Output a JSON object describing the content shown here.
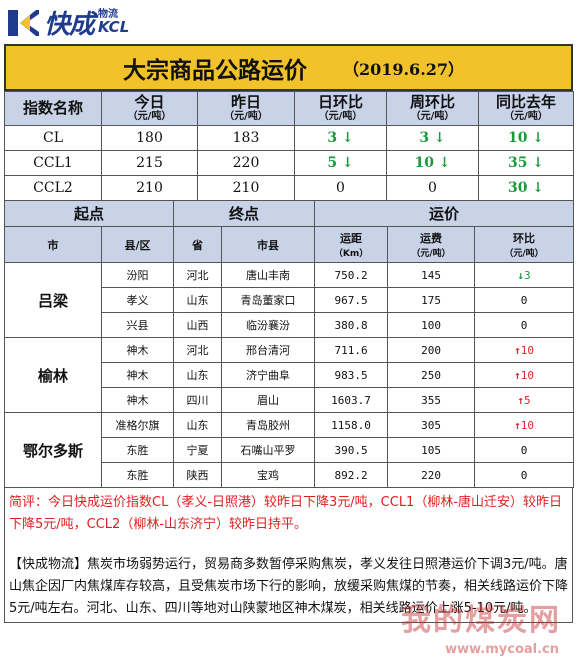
{
  "brand": {
    "name": "快成",
    "sub_cn": "物流",
    "sub_en": "KCL"
  },
  "title": "大宗商品公路运价",
  "date": "（2019.6.27）",
  "index_table": {
    "headers": [
      {
        "main": "指数名称",
        "unit": ""
      },
      {
        "main": "今日",
        "unit": "（元/吨）"
      },
      {
        "main": "昨日",
        "unit": "（元/吨）"
      },
      {
        "main": "日环比",
        "unit": "（元/吨）"
      },
      {
        "main": "周环比",
        "unit": "（元/吨）"
      },
      {
        "main": "同比去年",
        "unit": "（元/吨）"
      }
    ],
    "rows": [
      {
        "name": "CL",
        "today": "180",
        "yesterday": "183",
        "day": "3",
        "week": "3",
        "yoy": "10"
      },
      {
        "name": "CCL1",
        "today": "215",
        "yesterday": "220",
        "day": "5",
        "week": "10",
        "yoy": "35"
      },
      {
        "name": "CCL2",
        "today": "210",
        "yesterday": "210",
        "day": "0",
        "week": "0",
        "yoy": "30"
      }
    ]
  },
  "route_table": {
    "group_headers": {
      "origin": "起点",
      "destination": "终点",
      "price": "运价"
    },
    "sub_headers": {
      "city": "市",
      "county": "县/区",
      "province": "省",
      "dest_city": "市县",
      "distance": "运距",
      "distance_unit": "（Km）",
      "fee": "运费",
      "fee_unit": "（元/吨）",
      "change": "环比",
      "change_unit": "（元/吨）"
    },
    "groups": [
      {
        "city": "吕梁",
        "rows": [
          {
            "county": "汾阳",
            "province": "河北",
            "dest": "唐山丰南",
            "distance": "750.2",
            "fee": "145",
            "change": "3",
            "dir": "down"
          },
          {
            "county": "孝义",
            "province": "山东",
            "dest": "青岛董家口",
            "distance": "967.5",
            "fee": "175",
            "change": "0",
            "dir": "none"
          },
          {
            "county": "兴县",
            "province": "山西",
            "dest": "临汾襄汾",
            "distance": "380.8",
            "fee": "100",
            "change": "0",
            "dir": "none"
          }
        ]
      },
      {
        "city": "榆林",
        "rows": [
          {
            "county": "神木",
            "province": "河北",
            "dest": "邢台清河",
            "distance": "711.6",
            "fee": "200",
            "change": "10",
            "dir": "up"
          },
          {
            "county": "神木",
            "province": "山东",
            "dest": "济宁曲阜",
            "distance": "983.5",
            "fee": "250",
            "change": "10",
            "dir": "up"
          },
          {
            "county": "神木",
            "province": "四川",
            "dest": "眉山",
            "distance": "1603.7",
            "fee": "355",
            "change": "5",
            "dir": "up"
          }
        ]
      },
      {
        "city": "鄂尔多斯",
        "rows": [
          {
            "county": "准格尔旗",
            "province": "山东",
            "dest": "青岛胶州",
            "distance": "1158.0",
            "fee": "305",
            "change": "10",
            "dir": "up"
          },
          {
            "county": "东胜",
            "province": "宁夏",
            "dest": "石嘴山平罗",
            "distance": "390.5",
            "fee": "105",
            "change": "0",
            "dir": "none"
          },
          {
            "county": "东胜",
            "province": "陕西",
            "dest": "宝鸡",
            "distance": "892.2",
            "fee": "220",
            "change": "0",
            "dir": "none"
          }
        ]
      }
    ]
  },
  "notes": {
    "red": "简评：今日快成运价指数CL（孝义-日照港）较昨日下降3元/吨，CCL1（柳林-唐山迁安）较昨日下降5元/吨，CCL2（柳林-山东济宁）较昨日持平。",
    "black": "【快成物流】焦炭市场弱势运行，贸易商多数暂停采购焦炭，孝义发往日照港运价下调3元/吨。唐山焦企因厂内焦煤库存较高，且受焦炭市场下行的影响，放缓采购焦煤的节奏，相关线路运价下降5元/吨左右。河北、山东、四川等地对山陕蒙地区神木煤炭，相关线路运价上涨5-10元/吨。"
  },
  "watermark": {
    "text": "我的煤炭网",
    "url": "www.mycoal.cn"
  },
  "colors": {
    "title_bg": "#f2c22a",
    "header_bg": "#c8d3e8",
    "up": "#d42a2a",
    "down": "#1a9a3a",
    "note_red": "#e02020",
    "brand": "#1f3c8c"
  }
}
